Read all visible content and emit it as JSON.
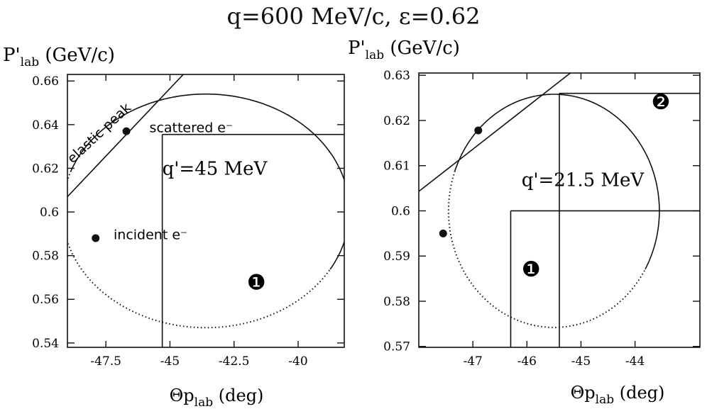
{
  "page": {
    "title": "q=600 MeV/c, ε=0.62"
  },
  "chart_data": [
    {
      "type": "line",
      "xlabel": "Θp_lab (deg)",
      "ylabel": "P'_lab (GeV/c)",
      "xlim": [
        -49.0,
        -38.2
      ],
      "ylim": [
        0.538,
        0.663
      ],
      "xticks": [
        -47.5,
        -45,
        -42.5,
        -40
      ],
      "xtick_labels": [
        "-47.5",
        "-45",
        "-42.5",
        "-40"
      ],
      "yticks": [
        0.54,
        0.56,
        0.58,
        0.6,
        0.62,
        0.64,
        0.66
      ],
      "ytick_labels": [
        "0.54",
        "0.56",
        "0.58",
        "0.6",
        "0.62",
        "0.64",
        "0.66"
      ],
      "grid": false,
      "ellipse": {
        "cx": -43.6,
        "cy": 0.6005,
        "rx": 5.6,
        "ry": 0.0535,
        "solid_from_deg": -30,
        "solid_to_deg": 160
      },
      "elastic_line": {
        "x": [
          -49.0,
          -44.4
        ],
        "y": [
          0.607,
          0.664
        ]
      },
      "points": [
        {
          "x": -46.7,
          "y": 0.637
        },
        {
          "x": -47.9,
          "y": 0.588
        }
      ],
      "region_lines": [
        {
          "x": [
            -45.3,
            -45.3
          ],
          "y": [
            0.538,
            0.6355
          ]
        },
        {
          "x": [
            -45.3,
            -38.2
          ],
          "y": [
            0.6355,
            0.6355
          ]
        }
      ],
      "annotations": [
        {
          "text": "elastic peak",
          "x": -48.8,
          "y": 0.622,
          "rotate": -43,
          "font": "sans"
        },
        {
          "text": "scattered e⁻",
          "x": -45.8,
          "y": 0.6365,
          "font": "sans"
        },
        {
          "text": "q'=45 MeV",
          "x": -45.3,
          "y": 0.617,
          "font": "serif"
        },
        {
          "text": "incident e⁻",
          "x": -47.2,
          "y": 0.5875,
          "font": "sans"
        },
        {
          "text": "❶",
          "x": -42.0,
          "y": 0.5645,
          "font": "serif",
          "size": 30
        }
      ]
    },
    {
      "type": "line",
      "xlabel": "Θp_lab (deg)",
      "ylabel": "P'_lab (GeV/c)",
      "xlim": [
        -48.0,
        -42.8
      ],
      "ylim": [
        0.5698,
        0.6305
      ],
      "xticks": [
        -47,
        -46,
        -45,
        -44
      ],
      "xtick_labels": [
        "-47",
        "-46",
        "-45",
        "-44"
      ],
      "yticks": [
        0.57,
        0.58,
        0.59,
        0.6,
        0.61,
        0.62,
        0.63
      ],
      "ytick_labels": [
        "0.57",
        "0.58",
        "0.59",
        "0.6",
        "0.61",
        "0.62",
        "0.63"
      ],
      "grid": false,
      "ellipse": {
        "cx": -45.5,
        "cy": 0.6,
        "rx": 1.95,
        "ry": 0.0258,
        "solid_from_deg": -30,
        "solid_to_deg": 160
      },
      "elastic_line": {
        "x": [
          -48.0,
          -45.1
        ],
        "y": [
          0.6043,
          0.6314
        ]
      },
      "points": [
        {
          "x": -46.9,
          "y": 0.6178
        },
        {
          "x": -47.55,
          "y": 0.595
        }
      ],
      "region_lines": [
        {
          "x": [
            -46.3,
            -46.3
          ],
          "y": [
            0.5698,
            0.6
          ]
        },
        {
          "x": [
            -46.3,
            -42.8
          ],
          "y": [
            0.6,
            0.6
          ]
        },
        {
          "x": [
            -45.4,
            -45.4
          ],
          "y": [
            0.5698,
            0.626
          ]
        },
        {
          "x": [
            -45.4,
            -42.8
          ],
          "y": [
            0.626,
            0.626
          ]
        }
      ],
      "annotations": [
        {
          "text": "q'=21.5 MeV",
          "x": -46.1,
          "y": 0.6055,
          "font": "serif"
        },
        {
          "text": "❶",
          "x": -46.1,
          "y": 0.5855,
          "font": "serif",
          "size": 30
        },
        {
          "text": "❷",
          "x": -43.7,
          "y": 0.6225,
          "font": "serif",
          "size": 30
        }
      ]
    }
  ]
}
